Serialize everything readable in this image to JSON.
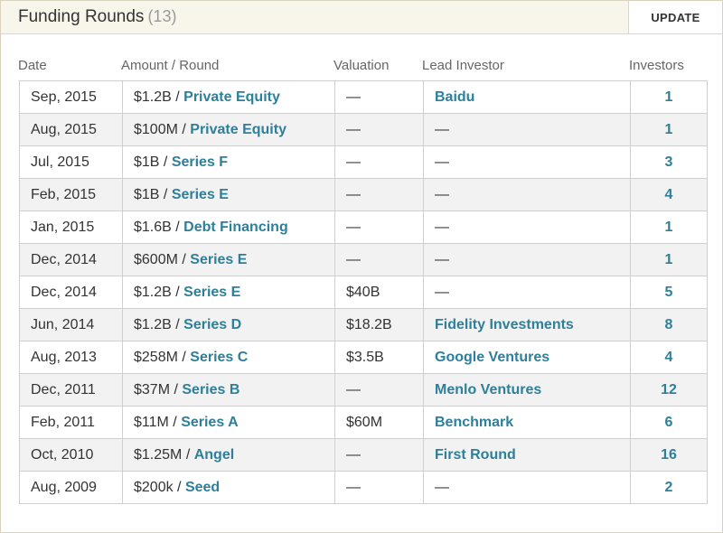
{
  "header": {
    "title": "Funding Rounds",
    "count": "(13)",
    "update_label": "UPDATE"
  },
  "columns": {
    "date": "Date",
    "amount_round": "Amount / Round",
    "valuation": "Valuation",
    "lead_investor": "Lead Investor",
    "investors": "Investors"
  },
  "rows": [
    {
      "date": "Sep, 2015",
      "amount": "$1.2B",
      "round": "Private Equity",
      "valuation": "—",
      "lead": "Baidu",
      "lead_link": true,
      "investors": "1"
    },
    {
      "date": "Aug, 2015",
      "amount": "$100M",
      "round": "Private Equity",
      "valuation": "—",
      "lead": "—",
      "lead_link": false,
      "investors": "1"
    },
    {
      "date": "Jul, 2015",
      "amount": "$1B",
      "round": "Series F",
      "valuation": "—",
      "lead": "—",
      "lead_link": false,
      "investors": "3"
    },
    {
      "date": "Feb, 2015",
      "amount": "$1B",
      "round": "Series E",
      "valuation": "—",
      "lead": "—",
      "lead_link": false,
      "investors": "4"
    },
    {
      "date": "Jan, 2015",
      "amount": "$1.6B",
      "round": "Debt Financing",
      "valuation": "—",
      "lead": "—",
      "lead_link": false,
      "investors": "1"
    },
    {
      "date": "Dec, 2014",
      "amount": "$600M",
      "round": "Series E",
      "valuation": "—",
      "lead": "—",
      "lead_link": false,
      "investors": "1"
    },
    {
      "date": "Dec, 2014",
      "amount": "$1.2B",
      "round": "Series E",
      "valuation": "$40B",
      "lead": "—",
      "lead_link": false,
      "investors": "5"
    },
    {
      "date": "Jun, 2014",
      "amount": "$1.2B",
      "round": "Series D",
      "valuation": "$18.2B",
      "lead": "Fidelity Investments",
      "lead_link": true,
      "investors": "8"
    },
    {
      "date": "Aug, 2013",
      "amount": "$258M",
      "round": "Series C",
      "valuation": "$3.5B",
      "lead": "Google Ventures",
      "lead_link": true,
      "investors": "4"
    },
    {
      "date": "Dec, 2011",
      "amount": "$37M",
      "round": "Series B",
      "valuation": "—",
      "lead": "Menlo Ventures",
      "lead_link": true,
      "investors": "12"
    },
    {
      "date": "Feb, 2011",
      "amount": "$11M",
      "round": "Series A",
      "valuation": "$60M",
      "lead": "Benchmark",
      "lead_link": true,
      "investors": "6"
    },
    {
      "date": "Oct, 2010",
      "amount": "$1.25M",
      "round": "Angel",
      "valuation": "—",
      "lead": "First Round",
      "lead_link": true,
      "investors": "16"
    },
    {
      "date": "Aug, 2009",
      "amount": "$200k",
      "round": "Seed",
      "valuation": "—",
      "lead": "—",
      "lead_link": false,
      "investors": "2"
    }
  ]
}
